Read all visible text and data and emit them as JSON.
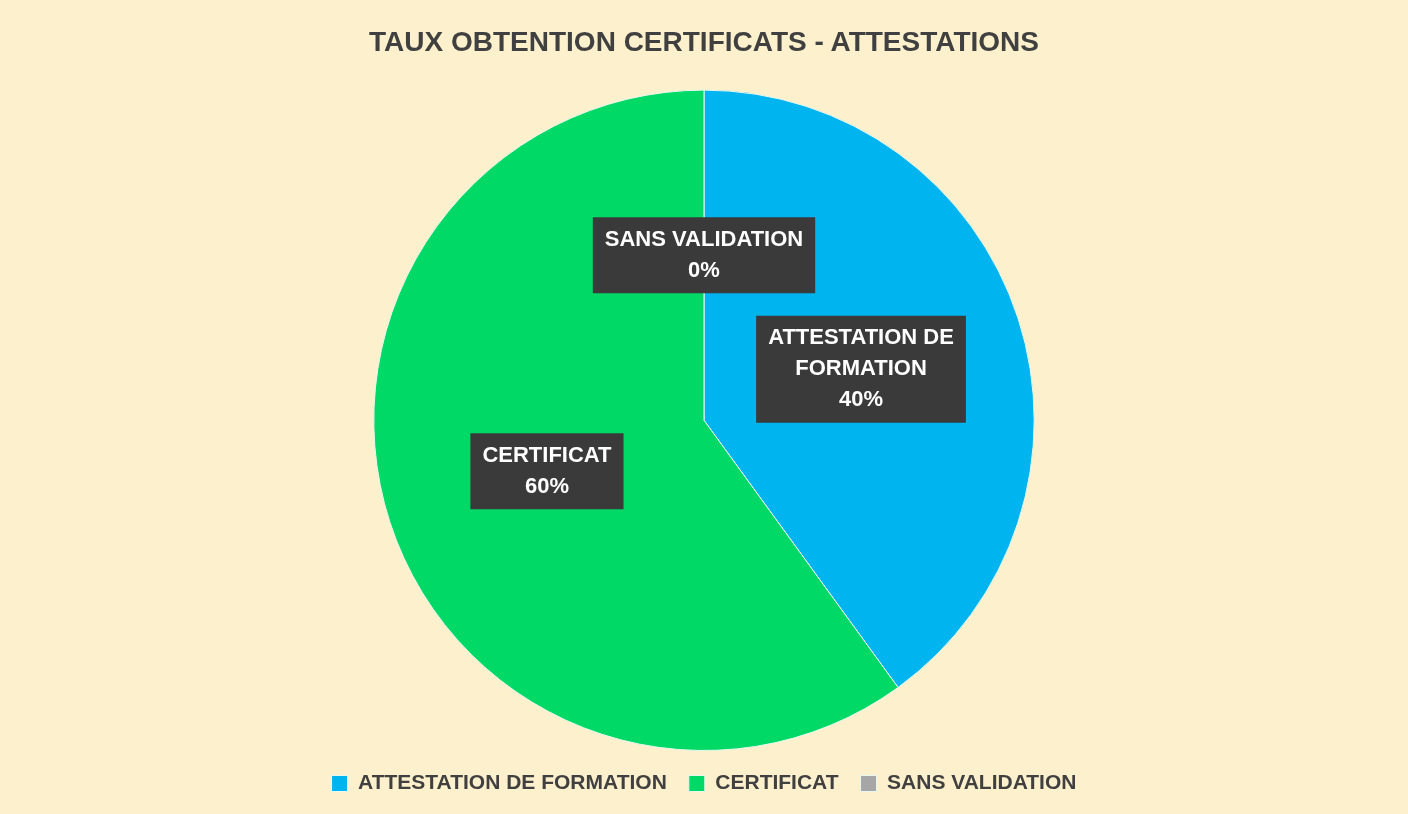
{
  "chart_data": {
    "type": "pie",
    "title": "TAUX OBTENTION CERTIFICATS - ATTESTATIONS",
    "categories": [
      "ATTESTATION DE FORMATION",
      "CERTIFICAT",
      "SANS VALIDATION"
    ],
    "values": [
      40,
      60,
      0
    ],
    "colors": [
      "#00b4f0",
      "#00d966",
      "#a6a6a6"
    ],
    "value_labels": [
      "40%",
      "60%",
      "0%"
    ],
    "legend": "bottom"
  }
}
